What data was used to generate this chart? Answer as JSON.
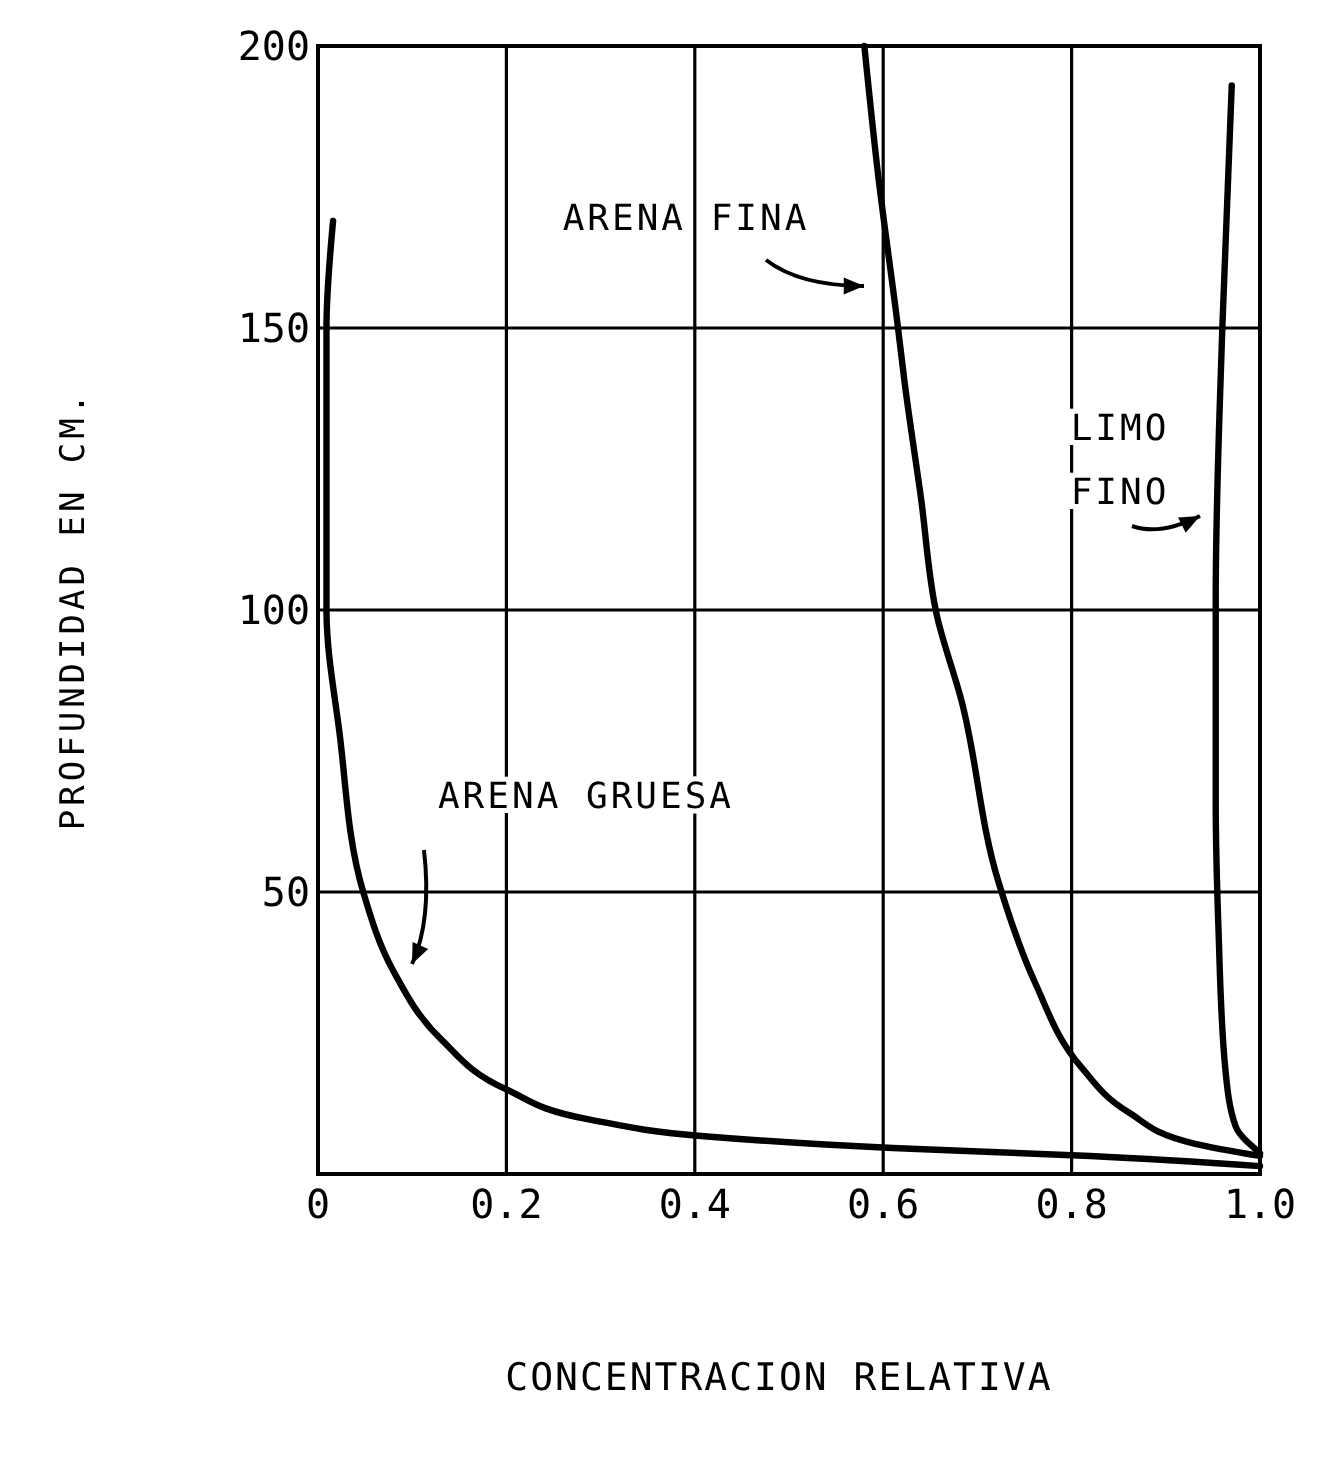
{
  "chart_data": {
    "type": "line",
    "xlabel": "CONCENTRACION RELATIVA",
    "ylabel": "PROFUNDIDAD EN CM.",
    "xlim": [
      0,
      1
    ],
    "ylim": [
      0,
      200
    ],
    "xticks": [
      0,
      0.2,
      0.4,
      0.6,
      0.8,
      {
        "value": 1,
        "label": "1.0"
      }
    ],
    "yticks": [
      {
        "value": 0,
        "label": null
      },
      50,
      100,
      150,
      200
    ],
    "grid": true,
    "marker": "none",
    "line_style": "solid",
    "series": [
      {
        "name": "ARENA GRUESA",
        "color": "#000000",
        "x": [
          0.016,
          0.009,
          0.009,
          0.023,
          0.048,
          0.08,
          0.13,
          0.2,
          0.29,
          0.41,
          0.61,
          0.82,
          1.0
        ],
        "values": [
          169,
          150,
          100,
          78,
          50,
          36,
          24,
          15,
          9.6,
          6.7,
          4.6,
          3.2,
          1.4
        ]
      },
      {
        "name": "ARENA FINA",
        "color": "#000000",
        "x": [
          0.58,
          0.594,
          0.615,
          0.623,
          0.64,
          0.657,
          0.683,
          0.722,
          0.761,
          0.81,
          0.86,
          0.93,
          1.0
        ],
        "values": [
          200,
          178,
          151,
          140,
          120,
          99,
          84,
          52,
          34,
          19,
          11,
          5.4,
          3.2
        ]
      },
      {
        "name": "LIMO FINO",
        "color": "#000000",
        "x": [
          0.97,
          0.96,
          0.953,
          0.953,
          0.956,
          0.963,
          0.974,
          1.0
        ],
        "values": [
          193,
          150,
          102,
          66,
          43,
          19,
          8.5,
          3.7
        ]
      }
    ]
  }
}
